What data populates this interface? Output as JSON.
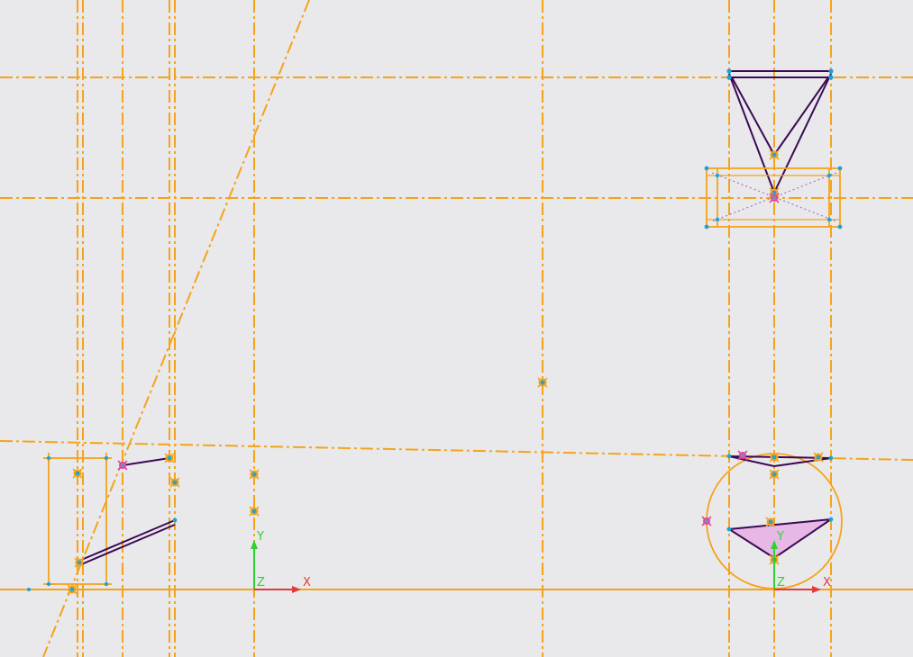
{
  "viewport": {
    "background": "#e9e9ec",
    "colors": {
      "construction": "#f5a31a",
      "geometry": "#3b0a55",
      "endpoint": "#1aa3d9",
      "constraint_marker": "#f5a31a",
      "fixed_marker": "#e0479e",
      "fill": "#e7b8e6",
      "axis_x": "#e23b3b",
      "axis_y": "#2fd32f"
    },
    "icons": [
      "coincident-point-icon",
      "axis-triad-icon"
    ]
  },
  "triads": [
    {
      "name": "left-axis-triad",
      "x_label": "X",
      "y_label": "Y",
      "z_label": "Z"
    },
    {
      "name": "right-axis-triad",
      "x_label": "X",
      "y_label": "Y",
      "z_label": "Z"
    }
  ]
}
